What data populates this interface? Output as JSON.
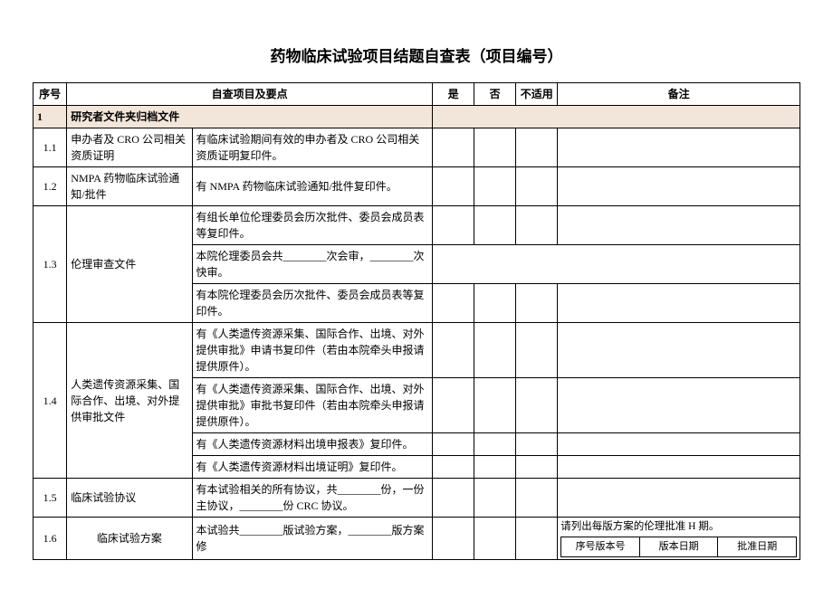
{
  "title": "药物临床试验项目结题自查表（项目编号）",
  "headers": {
    "seq": "序号",
    "item": "自查项目及要点",
    "yes": "是",
    "no": "否",
    "na": "不适用",
    "note": "备注"
  },
  "section1": {
    "num": "1",
    "label": "研究者文件夹归档文件"
  },
  "rows": {
    "r11": {
      "num": "1.1",
      "item": "申办者及 CRO 公司相关资质证明",
      "desc": "有临床试验期间有效的申办者及 CRO 公司相关资质证明复印件。"
    },
    "r12": {
      "num": "1.2",
      "item": "NMPA 药物临床试验通知/批件",
      "desc": "有 NMPA 药物临床试验通知/批件复印件。"
    },
    "r13": {
      "num": "1.3",
      "item": "伦理审查文件",
      "d1": "有组长单位伦理委员会历次批件、委员会成员表等复印件。",
      "d2": "本院伦理委员会共________次会审，________次快审。",
      "d3": "有本院伦理委员会历次批件、委员会成员表等复印件。"
    },
    "r14": {
      "num": "1.4",
      "item": "人类遗传资源采集、国际合作、出境、对外提供审批文件",
      "d1": "有《人类遗传资源采集、国际合作、出境、对外提供审批》申请书复印件（若由本院牵头申报请提供原件）。",
      "d2": "有《人类遗传资源采集、国际合作、出境、对外提供审批》审批书复印件（若由本院牵头申报请提供原件）。",
      "d3": "有《人类遗传资源材料出境申报表》复印件。",
      "d4": "有《人类遗传资源材料出境证明》复印件。"
    },
    "r15": {
      "num": "1.5",
      "item": "临床试验协议",
      "desc": "有本试验相关的所有协议，共________份，一份主协议，________份 CRC 协议。"
    },
    "r16": {
      "num": "1.6",
      "item": "临床试验方案",
      "desc": "本试验共________版试验方案，________版方案修",
      "note_text": "请列出每版方案的伦理批准 H 期。",
      "sub": {
        "c1": "序号版本号",
        "c2": "版本日期",
        "c3": "批准日期"
      }
    }
  }
}
